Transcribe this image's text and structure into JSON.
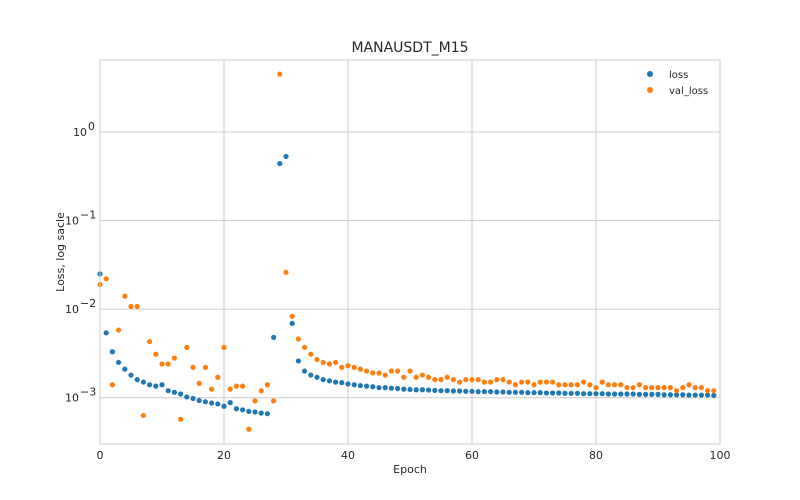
{
  "chart_data": {
    "type": "scatter",
    "title": "MANAUSDT_M15",
    "xlabel": "Epoch",
    "ylabel": "Loss, log sacle",
    "xlim": [
      0,
      100
    ],
    "ylim": [
      0.0003,
      6.5
    ],
    "yscale": "log",
    "x_ticks": [
      0,
      20,
      40,
      60,
      80,
      100
    ],
    "x_tick_labels": [
      "0",
      "20",
      "40",
      "60",
      "80",
      "100"
    ],
    "y_ticks": [
      0.001,
      0.01,
      0.1,
      1
    ],
    "y_tick_labels": [
      {
        "base": "10",
        "exp": "−3"
      },
      {
        "base": "10",
        "exp": "−2"
      },
      {
        "base": "10",
        "exp": "−1"
      },
      {
        "base": "10",
        "exp": "0"
      }
    ],
    "grid": true,
    "legend_position": "top-right",
    "x": [
      0,
      1,
      2,
      3,
      4,
      5,
      6,
      7,
      8,
      9,
      10,
      11,
      12,
      13,
      14,
      15,
      16,
      17,
      18,
      19,
      20,
      21,
      22,
      23,
      24,
      25,
      26,
      27,
      28,
      29,
      30,
      31,
      32,
      33,
      34,
      35,
      36,
      37,
      38,
      39,
      40,
      41,
      42,
      43,
      44,
      45,
      46,
      47,
      48,
      49,
      50,
      51,
      52,
      53,
      54,
      55,
      56,
      57,
      58,
      59,
      60,
      61,
      62,
      63,
      64,
      65,
      66,
      67,
      68,
      69,
      70,
      71,
      72,
      73,
      74,
      75,
      76,
      77,
      78,
      79,
      80,
      81,
      82,
      83,
      84,
      85,
      86,
      87,
      88,
      89,
      90,
      91,
      92,
      93,
      94,
      95,
      96,
      97,
      98,
      99
    ],
    "series": [
      {
        "name": "loss",
        "color": "#1f77b4",
        "values": [
          0.025,
          0.0054,
          0.0033,
          0.0025,
          0.0021,
          0.0018,
          0.0016,
          0.0015,
          0.0014,
          0.00135,
          0.0014,
          0.0012,
          0.00115,
          0.0011,
          0.00102,
          0.00098,
          0.00093,
          0.0009,
          0.00087,
          0.00085,
          0.0008,
          0.00088,
          0.00075,
          0.00073,
          0.0007,
          0.00069,
          0.00067,
          0.00066,
          0.0048,
          0.44,
          0.53,
          0.0069,
          0.0026,
          0.002,
          0.0018,
          0.0017,
          0.0016,
          0.00155,
          0.0015,
          0.00148,
          0.00143,
          0.0014,
          0.00137,
          0.00135,
          0.00133,
          0.0013,
          0.0013,
          0.00128,
          0.00127,
          0.00125,
          0.00124,
          0.00123,
          0.00123,
          0.00122,
          0.00121,
          0.0012,
          0.0012,
          0.00119,
          0.00119,
          0.00118,
          0.00118,
          0.00117,
          0.00117,
          0.00117,
          0.00116,
          0.00116,
          0.00115,
          0.00115,
          0.00115,
          0.00114,
          0.00114,
          0.00114,
          0.00113,
          0.00113,
          0.00113,
          0.00112,
          0.00112,
          0.00112,
          0.00111,
          0.00111,
          0.00111,
          0.00111,
          0.0011,
          0.0011,
          0.0011,
          0.0011,
          0.0011,
          0.00109,
          0.00109,
          0.00109,
          0.00109,
          0.00108,
          0.00108,
          0.00108,
          0.00108,
          0.00107,
          0.00107,
          0.00107,
          0.00107,
          0.00106
        ]
      },
      {
        "name": "val_loss",
        "color": "#ff7f0e",
        "values": [
          0.019,
          0.022,
          0.0014,
          0.0058,
          0.014,
          0.0107,
          0.0107,
          0.00063,
          0.0043,
          0.0031,
          0.0024,
          0.0024,
          0.0028,
          0.00057,
          0.0037,
          0.0022,
          0.00145,
          0.0022,
          0.00125,
          0.0017,
          0.0037,
          0.00125,
          0.00135,
          0.00135,
          0.00044,
          0.00092,
          0.0012,
          0.0014,
          0.00092,
          4.5,
          0.026,
          0.0083,
          0.0046,
          0.0037,
          0.0031,
          0.0027,
          0.0025,
          0.0024,
          0.0025,
          0.0022,
          0.0023,
          0.0022,
          0.0021,
          0.002,
          0.0019,
          0.0019,
          0.0018,
          0.002,
          0.002,
          0.0017,
          0.002,
          0.0017,
          0.0018,
          0.0017,
          0.0016,
          0.0016,
          0.0017,
          0.0016,
          0.0015,
          0.0016,
          0.0016,
          0.0016,
          0.0015,
          0.0015,
          0.0016,
          0.0016,
          0.0015,
          0.0014,
          0.0015,
          0.0015,
          0.0014,
          0.0015,
          0.0015,
          0.0015,
          0.0014,
          0.0014,
          0.0014,
          0.0014,
          0.0015,
          0.0014,
          0.0013,
          0.0015,
          0.0014,
          0.0014,
          0.0014,
          0.0013,
          0.0013,
          0.0014,
          0.0013,
          0.0013,
          0.0013,
          0.0013,
          0.0013,
          0.0012,
          0.0013,
          0.0014,
          0.0013,
          0.0013,
          0.0012,
          0.0012
        ]
      }
    ]
  }
}
